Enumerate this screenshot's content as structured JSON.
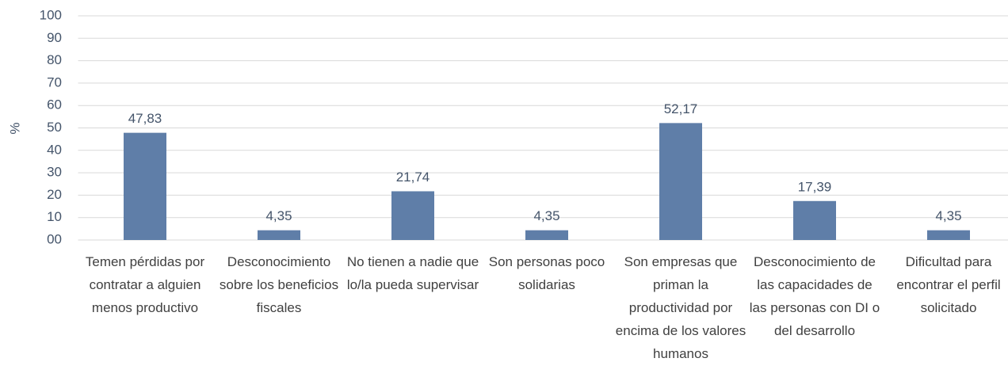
{
  "chart_data": {
    "type": "bar",
    "y_label": "%",
    "categories": [
      "Temen pérdidas por contratar a alguien menos productivo",
      "Desconocimiento sobre los beneficios fiscales",
      "No tienen a nadie que lo/la pueda supervisar",
      "Son personas poco solidarias",
      "Son empresas que priman la productividad por encima de los valores humanos",
      "Desconocimiento de las capacidades de las personas con DI o del desarrollo",
      "Dificultad para encontrar el perfil solicitado"
    ],
    "values": [
      47.83,
      4.35,
      21.74,
      4.35,
      52.17,
      17.39,
      4.35
    ],
    "value_labels": [
      "47,83",
      "4,35",
      "21,74",
      "4,35",
      "52,17",
      "17,39",
      "4,35"
    ],
    "color": "#5f7ea8",
    "ylim": [
      0,
      100
    ],
    "yticks": [
      {
        "value": 0,
        "label": "00"
      },
      10,
      20,
      30,
      40,
      50,
      60,
      70,
      80,
      90,
      100
    ],
    "grid": true
  }
}
